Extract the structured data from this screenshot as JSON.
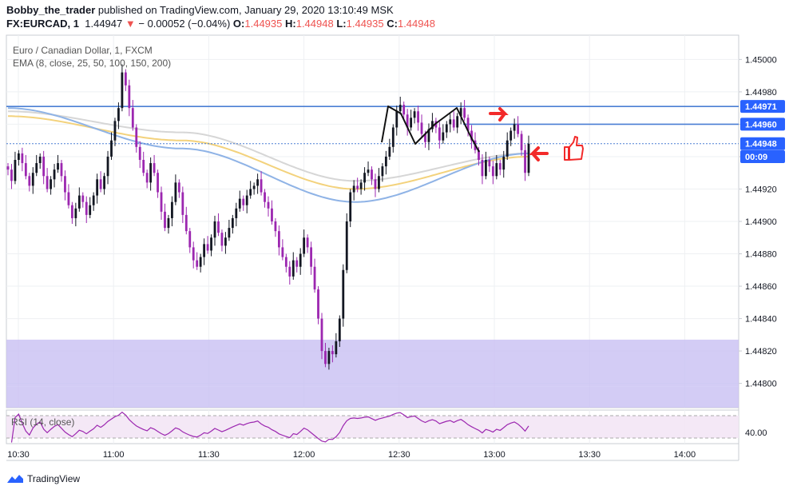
{
  "header": {
    "author": "Bobby_the_trader",
    "published": "published on TradingView.com, January 29, 2020 13:10:49 MSK",
    "symbol": "FX:EURCAD, 1",
    "last": "1.44947",
    "change": "− 0.00052 (−0.04%)",
    "o_label": "O:",
    "o": "1.44935",
    "h_label": "H:",
    "h": "1.44948",
    "l_label": "L:",
    "l": "1.44935",
    "c_label": "C:",
    "c": "1.44948"
  },
  "legend": {
    "title": "Euro / Canadian Dollar, 1, FXCM",
    "ema": "EMA (8, close, 25, 50, 100, 150, 200)"
  },
  "brand": {
    "name": "TradingView"
  },
  "colors": {
    "bull": "#131722",
    "bear": "#9c27b0",
    "ema_blue": "#8fb3e6",
    "ema_yellow": "#f3d27c",
    "ema_grey": "#d6d6d6",
    "level_line": "#4a7fd4",
    "zone": "#c8bff3",
    "rsi": "#9c27b0",
    "arrow": "#f22a2a",
    "price_label": "#2962ff"
  },
  "chart_data": {
    "type": "candlestick",
    "symbol": "EURCAD",
    "timeframe": "1",
    "y_range": [
      1.44785,
      1.45015
    ],
    "y_ticks": [
      "1.45000",
      "1.44980",
      "1.44960",
      "1.44940",
      "1.44920",
      "1.44900",
      "1.44880",
      "1.44860",
      "1.44840",
      "1.44820",
      "1.44800"
    ],
    "x_ticks": [
      "10:30",
      "11:00",
      "11:30",
      "12:00",
      "12:30",
      "13:00",
      "13:30",
      "14:00"
    ],
    "price_labels": [
      {
        "value": 1.44971,
        "text": "1.44971"
      },
      {
        "value": 1.4496,
        "text": "1.44960"
      },
      {
        "value": 1.44948,
        "text": "1.44948"
      },
      {
        "value": 1.4494,
        "text": "00:09"
      }
    ],
    "levels": [
      1.44971,
      1.4496
    ],
    "zone": [
      1.44798,
      1.44827
    ],
    "close": [
      1.44932,
      1.44925,
      1.44938,
      1.44942,
      1.44936,
      1.44928,
      1.44922,
      1.4493,
      1.44936,
      1.4494,
      1.44928,
      1.4492,
      1.44926,
      1.44932,
      1.44936,
      1.44928,
      1.44918,
      1.4491,
      1.44902,
      1.44908,
      1.44916,
      1.44912,
      1.44904,
      1.4491,
      1.44916,
      1.44926,
      1.4492,
      1.44928,
      1.4494,
      1.4495,
      1.44962,
      1.4497,
      1.44992,
      1.44984,
      1.4497,
      1.44958,
      1.44946,
      1.44938,
      1.4493,
      1.44924,
      1.44936,
      1.4493,
      1.44918,
      1.44906,
      1.44896,
      1.44902,
      1.44912,
      1.44924,
      1.44918,
      1.44904,
      1.44894,
      1.44884,
      1.44876,
      1.44872,
      1.44878,
      1.44886,
      1.44882,
      1.4489,
      1.449,
      1.44893,
      1.44885,
      1.4489,
      1.44896,
      1.44902,
      1.44908,
      1.44914,
      1.4491,
      1.44916,
      1.4492,
      1.44922,
      1.44926,
      1.44918,
      1.44912,
      1.44908,
      1.449,
      1.44894,
      1.44884,
      1.44878,
      1.44872,
      1.44866,
      1.44876,
      1.44872,
      1.4488,
      1.4489,
      1.44884,
      1.44872,
      1.44858,
      1.4484,
      1.4482,
      1.44812,
      1.4482,
      1.44818,
      1.44826,
      1.4484,
      1.4487,
      1.449,
      1.44918,
      1.44922,
      1.4492,
      1.44924,
      1.4493,
      1.44932,
      1.44926,
      1.4492,
      1.44928,
      1.44934,
      1.4494,
      1.44946,
      1.44958,
      1.44968,
      1.44972,
      1.44966,
      1.44958,
      1.44964,
      1.44968,
      1.44961,
      1.44954,
      1.44949,
      1.44957,
      1.44962,
      1.44958,
      1.4495,
      1.44955,
      1.4496,
      1.44963,
      1.44958,
      1.44965,
      1.4497,
      1.44964,
      1.44956,
      1.4495,
      1.44944,
      1.44938,
      1.44928,
      1.44938,
      1.44934,
      1.44928,
      1.44936,
      1.44932,
      1.4494,
      1.4495,
      1.44956,
      1.4496,
      1.44954,
      1.44944,
      1.4493,
      1.44948
    ],
    "ema_approx": {
      "blue": [
        1.4497,
        1.44945,
        1.44912,
        1.44942
      ],
      "yellow": [
        1.44965,
        1.4495,
        1.4492,
        1.4494
      ],
      "grey": [
        1.44968,
        1.44955,
        1.44925,
        1.44942
      ]
    },
    "rsi": {
      "label": "RSI (14, close)",
      "tick": "40.00",
      "range": [
        20,
        80
      ],
      "upper": 70,
      "lower": 30
    }
  }
}
